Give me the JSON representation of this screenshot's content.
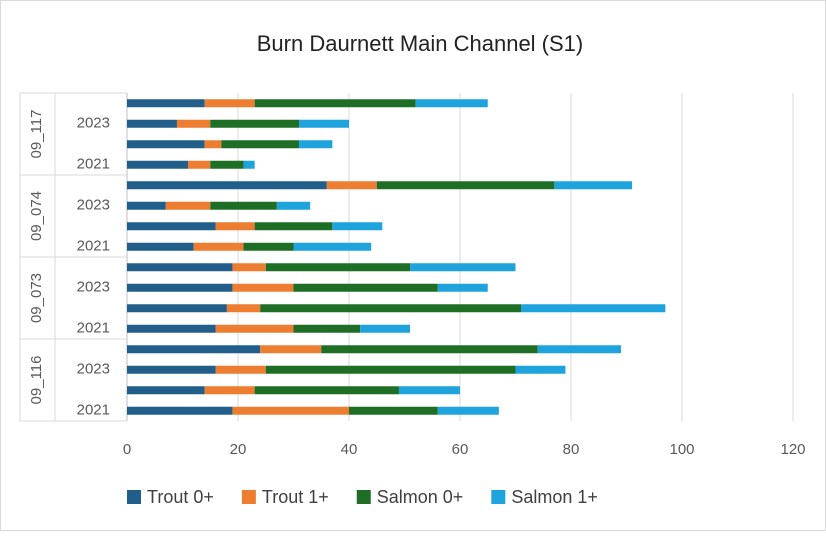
{
  "chart_data": {
    "type": "stacked-barh",
    "title": "Burn Daurnett Main Channel (S1)",
    "groups": [
      "09_117",
      "09_074",
      "09_073",
      "09_116"
    ],
    "categories": [
      null,
      "2023",
      null,
      "2021",
      null,
      "2023",
      null,
      "2021",
      null,
      "2023",
      null,
      "2021",
      null,
      "2023",
      null,
      "2021"
    ],
    "series": [
      {
        "name": "Trout 0+",
        "color": "#215f8a",
        "values": [
          14,
          9,
          14,
          11,
          36,
          7,
          16,
          12,
          19,
          19,
          18,
          16,
          24,
          16,
          14,
          19
        ]
      },
      {
        "name": "Trout 1+",
        "color": "#ed7d31",
        "values": [
          9,
          6,
          3,
          4,
          9,
          8,
          7,
          9,
          6,
          11,
          6,
          14,
          11,
          9,
          9,
          21
        ]
      },
      {
        "name": "Salmon 0+",
        "color": "#1f6e25",
        "values": [
          29,
          16,
          14,
          6,
          32,
          12,
          14,
          9,
          26,
          26,
          47,
          12,
          39,
          45,
          26,
          16
        ]
      },
      {
        "name": "Salmon 1+",
        "color": "#1fa3dd",
        "values": [
          13,
          9,
          6,
          2,
          14,
          6,
          9,
          14,
          19,
          9,
          26,
          9,
          15,
          9,
          11,
          11
        ]
      }
    ],
    "xlim": [
      0,
      120
    ],
    "xticks": [
      0,
      20,
      40,
      60,
      80,
      100,
      120
    ],
    "grid": true,
    "legend": "bottom"
  }
}
